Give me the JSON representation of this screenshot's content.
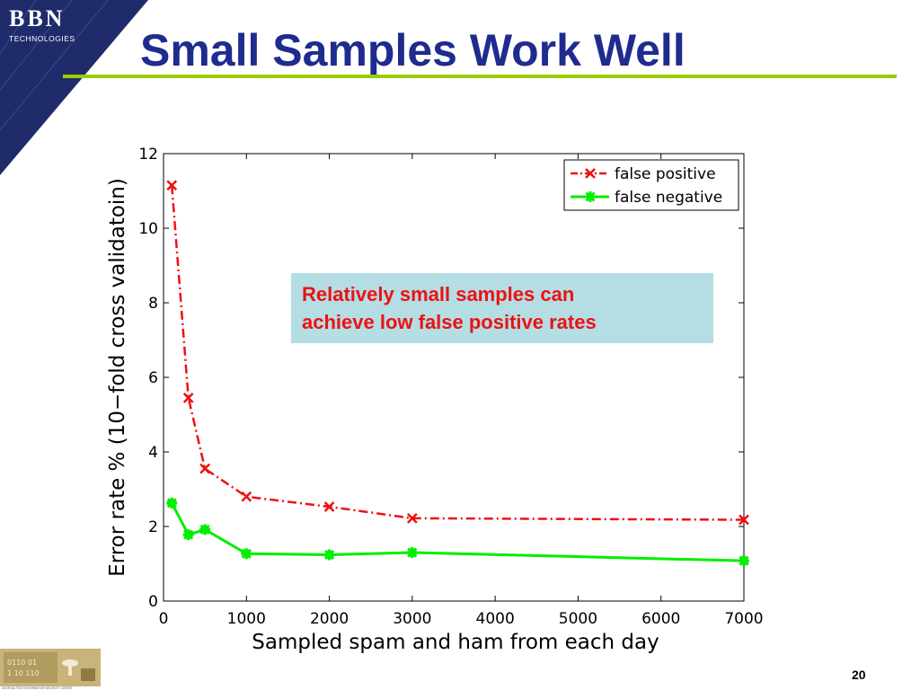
{
  "header": {
    "logo_text": "BBN",
    "logo_subtext": "TECHNOLOGIES",
    "title": "Small Samples Work Well"
  },
  "callout": {
    "line1": "Relatively small samples can",
    "line2": "achieve low false positive rates"
  },
  "footer": {
    "page_number": "20",
    "logo_caption": "GEORGIA TECH INFORMATION SECURITY CENTER"
  },
  "colors": {
    "title": "#1f2b8e",
    "rule": "#99cc00",
    "callout_bg": "#b4dde4",
    "callout_text": "#ee1111",
    "false_positive": "#ee1111",
    "false_negative": "#00ee00"
  },
  "chart_data": {
    "type": "line",
    "title": "",
    "xlabel": "Sampled spam and ham from each day",
    "ylabel": "Error rate % (10−fold cross validatoin)",
    "xlim": [
      0,
      7000
    ],
    "ylim": [
      0,
      12
    ],
    "xticks": [
      0,
      1000,
      2000,
      3000,
      4000,
      5000,
      6000,
      7000
    ],
    "yticks": [
      0,
      2,
      4,
      6,
      8,
      10,
      12
    ],
    "grid": false,
    "legend_position": "top-right",
    "series": [
      {
        "name": "false positive",
        "color": "#ee1111",
        "style": "dash-dot",
        "marker": "x",
        "x": [
          100,
          300,
          500,
          1000,
          2000,
          3000,
          7000
        ],
        "y": [
          11.15,
          5.45,
          3.55,
          2.8,
          2.53,
          2.22,
          2.18
        ]
      },
      {
        "name": "false negative",
        "color": "#00ee00",
        "style": "solid",
        "marker": "star",
        "x": [
          100,
          300,
          500,
          1000,
          2000,
          3000,
          7000
        ],
        "y": [
          2.63,
          1.78,
          1.92,
          1.27,
          1.24,
          1.3,
          1.08
        ]
      }
    ]
  }
}
